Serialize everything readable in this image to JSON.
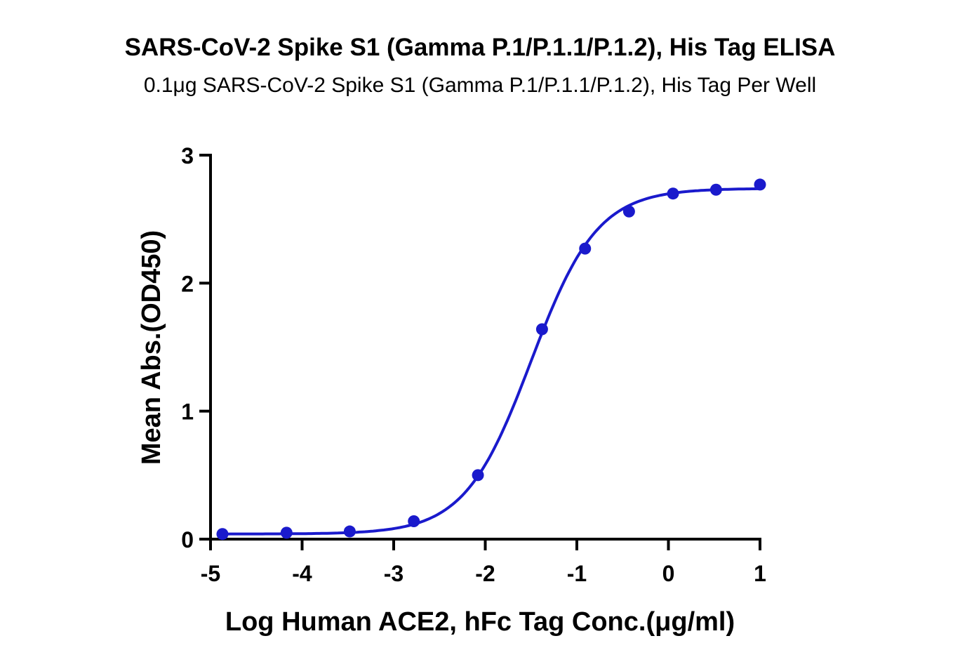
{
  "chart_data": {
    "type": "line",
    "title": "SARS-CoV-2 Spike S1 (Gamma P.1/P.1.1/P.1.2), His Tag ELISA",
    "subtitle": "0.1μg SARS-CoV-2 Spike S1 (Gamma P.1/P.1.1/P.1.2), His Tag Per Well",
    "xlabel": "Log Human ACE2, hFc Tag Conc.(μg/ml)",
    "ylabel": "Mean Abs.(OD450)",
    "xlim": [
      -5,
      1
    ],
    "ylim": [
      0,
      3
    ],
    "xticks": [
      "-5",
      "-4",
      "-3",
      "-2",
      "-1",
      "0",
      "1"
    ],
    "yticks": [
      "0",
      "1",
      "2",
      "3"
    ],
    "grid": false,
    "series": [
      {
        "color": "#1a1acc",
        "x": [
          -4.87,
          -4.17,
          -3.48,
          -2.78,
          -2.08,
          -1.38,
          -0.91,
          -0.43,
          0.05,
          0.52,
          1.0
        ],
        "y": [
          0.04,
          0.05,
          0.06,
          0.14,
          0.5,
          1.64,
          2.27,
          2.56,
          2.7,
          2.73,
          2.77
        ]
      }
    ]
  }
}
